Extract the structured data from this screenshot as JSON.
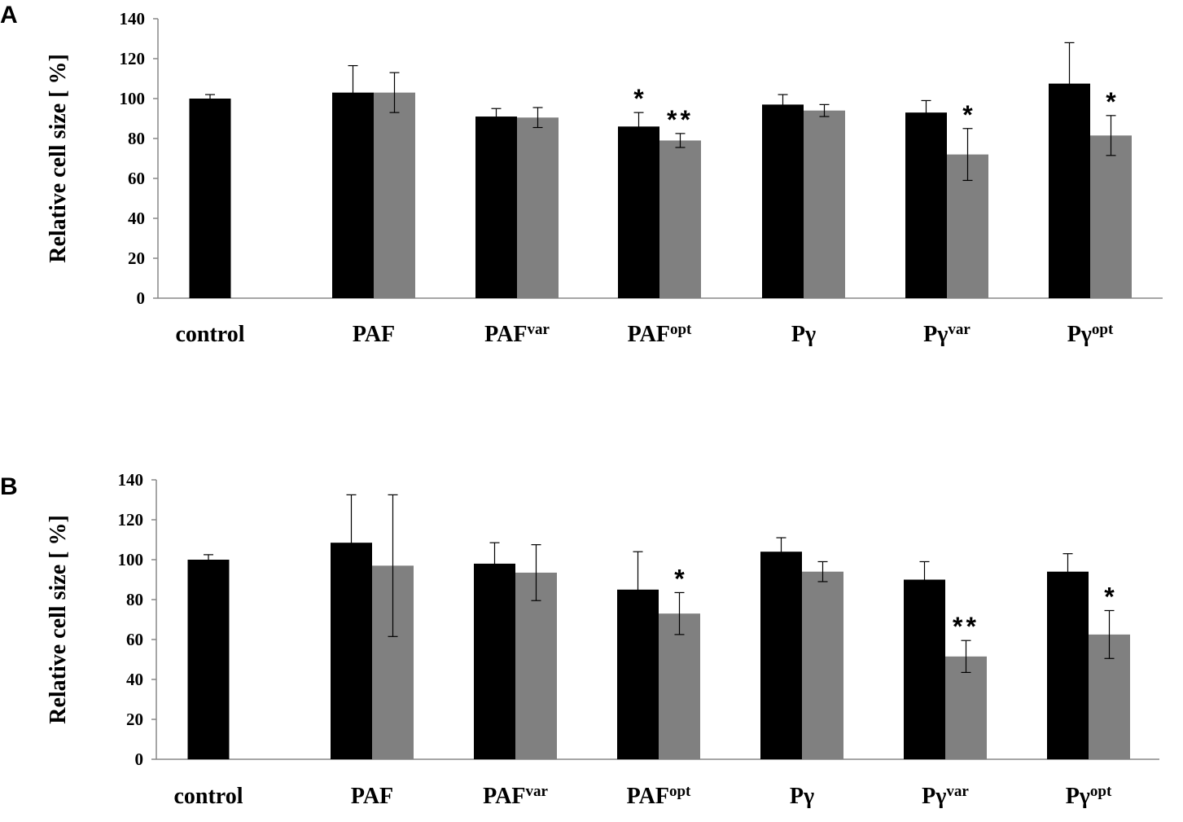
{
  "chart_data": [
    {
      "type": "bar",
      "panel": "A",
      "ylabel": "Relative cell size [ %]",
      "ylim": [
        0,
        140
      ],
      "yticks": [
        "0",
        "20",
        "40",
        "60",
        "80",
        "100",
        "120",
        "140"
      ],
      "categories": [
        {
          "base": "control",
          "sup": ""
        },
        {
          "base": "PAF",
          "sup": ""
        },
        {
          "base": "PAF",
          "sup": "var"
        },
        {
          "base": "PAF",
          "sup": "opt"
        },
        {
          "base": "Pγ",
          "sup": ""
        },
        {
          "base": "Pγ",
          "sup": "var"
        },
        {
          "base": "Pγ",
          "sup": "opt"
        }
      ],
      "series": [
        {
          "color": "#000000",
          "values": [
            100,
            103,
            91,
            86,
            97,
            93,
            107.5
          ],
          "errors": [
            2,
            13.5,
            4,
            7,
            5,
            6,
            20.5
          ],
          "stars": [
            "",
            "",
            "",
            "*",
            "",
            "",
            ""
          ]
        },
        {
          "color": "#808080",
          "values": [
            null,
            103,
            90.5,
            79,
            94,
            72,
            81.5
          ],
          "errors": [
            null,
            10,
            5,
            3.5,
            3,
            13,
            10
          ],
          "stars": [
            "",
            "",
            "",
            "**",
            "",
            "*",
            "*"
          ]
        }
      ],
      "grid": false
    },
    {
      "type": "bar",
      "panel": "B",
      "ylabel": "Relative cell size [ %]",
      "ylim": [
        0,
        140
      ],
      "yticks": [
        "0",
        "20",
        "40",
        "60",
        "80",
        "100",
        "120",
        "140"
      ],
      "categories": [
        {
          "base": "control",
          "sup": ""
        },
        {
          "base": "PAF",
          "sup": ""
        },
        {
          "base": "PAF",
          "sup": "var"
        },
        {
          "base": "PAF",
          "sup": "opt"
        },
        {
          "base": "Pγ",
          "sup": ""
        },
        {
          "base": "Pγ",
          "sup": "var"
        },
        {
          "base": "Pγ",
          "sup": "opt"
        }
      ],
      "series": [
        {
          "color": "#000000",
          "values": [
            100,
            108.5,
            98,
            85,
            104,
            90,
            94
          ],
          "errors": [
            2.5,
            24,
            10.5,
            19,
            7,
            9,
            9
          ],
          "stars": [
            "",
            "",
            "",
            "",
            "",
            "",
            ""
          ]
        },
        {
          "color": "#808080",
          "values": [
            null,
            97,
            93.5,
            73,
            94,
            51.5,
            62.5
          ],
          "errors": [
            null,
            35.5,
            14,
            10.5,
            5,
            8,
            12
          ],
          "stars": [
            "",
            "",
            "",
            "*",
            "",
            "**",
            "*"
          ]
        }
      ],
      "grid": false
    }
  ]
}
